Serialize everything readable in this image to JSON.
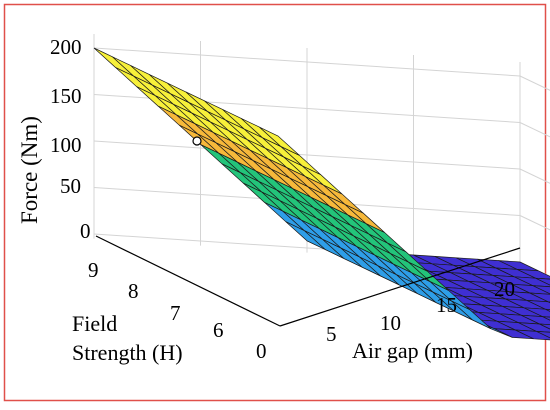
{
  "chart_data": {
    "type": "surface",
    "zlabel": "Force (Nm)",
    "xlabel": "Air gap (mm)",
    "ylabel_lines": [
      "Field",
      "Strength (H)"
    ],
    "x_ticks": [
      "5",
      "10",
      "15",
      "20"
    ],
    "y_ticks": [
      "0",
      "6",
      "7",
      "8",
      "9"
    ],
    "z_ticks": [
      "0",
      "50",
      "100",
      "150",
      "200"
    ],
    "color_bands": [
      {
        "z_range": [
          150,
          200
        ],
        "color": "#f7f03a"
      },
      {
        "z_range": [
          100,
          150
        ],
        "color": "#f6b83a"
      },
      {
        "z_range": [
          50,
          100
        ],
        "color": "#23c47a"
      },
      {
        "z_range": [
          0,
          50
        ],
        "color": "#2e9ee8"
      },
      {
        "z_range": [
          -10,
          0
        ],
        "color": "#3f2fd2"
      }
    ],
    "surface_description_values": {
      "z_at_min_airgap": 200,
      "z_at_max_airgap": 0
    },
    "frame_color": "#e0504a",
    "grid": true
  }
}
